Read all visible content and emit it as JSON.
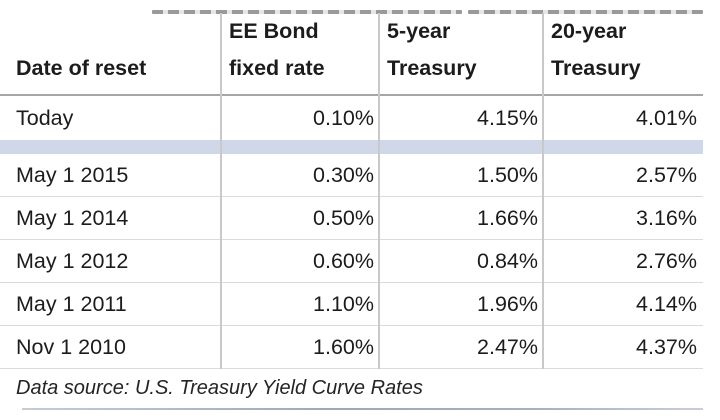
{
  "colors": {
    "background": "#ffffff",
    "text": "#1c1c1c",
    "header_border": "#a6a6a6",
    "row_line": "#dadada",
    "vertical_line": "#c9c9c9",
    "highlight_band": "#d0d7e9",
    "bottom_rule": "#a4aeb8"
  },
  "table": {
    "columns": [
      {
        "line1": "",
        "line2": "Date of reset"
      },
      {
        "line1": "EE Bond",
        "line2": "fixed rate"
      },
      {
        "line1": "5-year",
        "line2": "Treasury"
      },
      {
        "line1": "20-year",
        "line2": "Treasury"
      }
    ],
    "rows": [
      {
        "date": "Today",
        "ee_rate": "0.10%",
        "t5": "4.15%",
        "t20": "4.01%"
      },
      {
        "date": "May 1 2015",
        "ee_rate": "0.30%",
        "t5": "1.50%",
        "t20": "2.57%"
      },
      {
        "date": "May 1 2014",
        "ee_rate": "0.50%",
        "t5": "1.66%",
        "t20": "3.16%"
      },
      {
        "date": "May 1 2012",
        "ee_rate": "0.60%",
        "t5": "0.84%",
        "t20": "2.76%"
      },
      {
        "date": "May 1 2011",
        "ee_rate": "1.10%",
        "t5": "1.96%",
        "t20": "4.14%"
      },
      {
        "date": "Nov 1 2010",
        "ee_rate": "1.60%",
        "t5": "2.47%",
        "t20": "4.37%"
      }
    ],
    "footer": "Data source: U.S. Treasury Yield Curve Rates"
  },
  "chart_data": {
    "type": "table",
    "title": "",
    "columns": [
      "Date of reset",
      "EE Bond fixed rate",
      "5-year Treasury",
      "20-year Treasury"
    ],
    "rows": [
      [
        "Today",
        0.1,
        4.15,
        4.01
      ],
      [
        "May 1 2015",
        0.3,
        1.5,
        2.57
      ],
      [
        "May 1 2014",
        0.5,
        1.66,
        3.16
      ],
      [
        "May 1 2012",
        0.6,
        0.84,
        2.76
      ],
      [
        "May 1 2011",
        1.1,
        1.96,
        4.14
      ],
      [
        "Nov 1 2010",
        1.6,
        2.47,
        4.37
      ]
    ],
    "units": "percent",
    "note": "Data source: U.S. Treasury Yield Curve Rates"
  }
}
